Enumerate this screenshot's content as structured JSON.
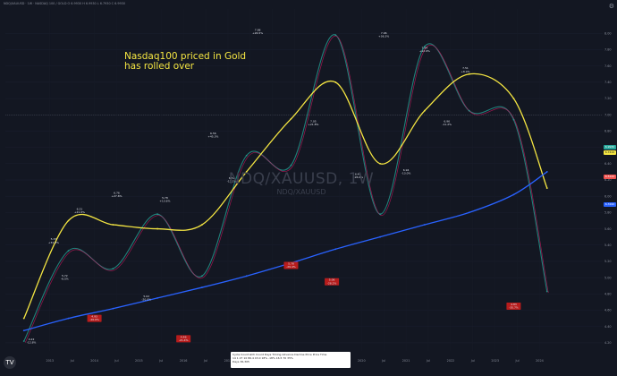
{
  "header": "NDQ/XAUUSD · 1W · NASDAQ 100 / GOLD  O 6.9930  H 6.9930  L 6.7930  C 6.9930",
  "chart_title": "NDQ/XAUUSD, 1W",
  "chart_subtitle": "NDQ/XAUUSD",
  "note": "Nasdaq100 priced in Gold\nhas rolled over",
  "colors": {
    "background": "#131722",
    "price_up": "#26a69a",
    "price_down": "#ef5350",
    "fast_ma": "#c2185b",
    "slow_wave": "#f5e642",
    "long_ma": "#2962ff",
    "label_box": "#b71c1c"
  },
  "chart_data": {
    "type": "line",
    "x": [
      "2012-06",
      "2013-06",
      "2014-06",
      "2015-06",
      "2016-06",
      "2017-06",
      "2018-06",
      "2019-06",
      "2020-06",
      "2021-06",
      "2022-06",
      "2023-06",
      "2024-03"
    ],
    "xlim": [
      "2012-01",
      "2025-06"
    ],
    "ylim": [
      4.1,
      8.3
    ],
    "x_ticks": [
      "2013",
      "Jul",
      "2014",
      "Jul",
      "2015",
      "Jul",
      "2016",
      "Jul",
      "2017",
      "Jul",
      "2018",
      "Jul",
      "2019",
      "Jul",
      "2020",
      "Jul",
      "2021",
      "Jul",
      "2022",
      "Jul",
      "2023",
      "Jul",
      "2024"
    ],
    "y_ticks": [
      "8.00",
      "7.80",
      "7.60",
      "7.40",
      "7.20",
      "7.00",
      "6.80",
      "6.60",
      "6.40",
      "6.20",
      "6.00",
      "5.80",
      "5.60",
      "5.40",
      "5.20",
      "5.00",
      "4.80",
      "4.60",
      "4.40",
      "4.20"
    ],
    "price_badges": [
      {
        "value": "6.9930",
        "color": "#26a69a"
      },
      {
        "value": "6.7410",
        "color": "#f5e642"
      },
      {
        "value": "6.5120",
        "color": "#ef5350"
      },
      {
        "value": "6.3190",
        "color": "#2962ff"
      }
    ],
    "series": [
      {
        "values": [
          4.22,
          5.33,
          5.11,
          5.78,
          5.02,
          6.5,
          6.38,
          7.98,
          5.78,
          7.84,
          7.05,
          6.94,
          4.83
        ]
      },
      {
        "values": [
          4.5,
          5.7,
          5.65,
          5.6,
          5.65,
          6.3,
          6.95,
          7.4,
          6.4,
          7.05,
          7.5,
          7.2,
          6.1
        ]
      },
      {
        "values": [
          4.35,
          4.5,
          4.62,
          4.75,
          4.88,
          5.02,
          5.18,
          5.35,
          5.5,
          5.65,
          5.8,
          6.02,
          6.3
        ]
      }
    ],
    "annotations": [
      {
        "text": "4.22\n-12.8%",
        "x": "2012-08",
        "y": 4.22,
        "box": false
      },
      {
        "text": "5.33\n+32.0%",
        "x": "2013-02",
        "y": 5.45,
        "box": false
      },
      {
        "text": "6.21\n+21.6%",
        "x": "2013-09",
        "y": 5.82,
        "box": false
      },
      {
        "text": "5.72\n-6.5%",
        "x": "2013-05",
        "y": 5.0,
        "box": false
      },
      {
        "text": "4.93\n-26.6%",
        "x": "2014-01",
        "y": 4.5,
        "box": true
      },
      {
        "text": "6.76\n+27.6%",
        "x": "2014-07",
        "y": 6.02,
        "box": false
      },
      {
        "text": "5.02\n-20.0%",
        "x": "2015-03",
        "y": 4.75,
        "box": false
      },
      {
        "text": "5.78\n+13.6%",
        "x": "2015-08",
        "y": 5.96,
        "box": false
      },
      {
        "text": "4.46\n-21.4%",
        "x": "2016-01",
        "y": 4.25,
        "box": true
      },
      {
        "text": "6.56\n+45.3%",
        "x": "2016-09",
        "y": 6.75,
        "box": false
      },
      {
        "text": "6.31\n-13.1%",
        "x": "2017-02",
        "y": 6.2,
        "box": false
      },
      {
        "text": "7.98\n+26.5%",
        "x": "2017-09",
        "y": 8.02,
        "box": false
      },
      {
        "text": "5.78\n-29.4%",
        "x": "2018-06",
        "y": 5.15,
        "box": true
      },
      {
        "text": "7.05\n+21.8%",
        "x": "2018-12",
        "y": 6.9,
        "box": false
      },
      {
        "text": "5.06\n-28.2%",
        "x": "2019-05",
        "y": 4.95,
        "box": true
      },
      {
        "text": "6.40\n+26.6%",
        "x": "2019-12",
        "y": 6.25,
        "box": false
      },
      {
        "text": "7.96\n+36.3%",
        "x": "2020-07",
        "y": 7.98,
        "box": false
      },
      {
        "text": "6.94\n-13.0%",
        "x": "2021-01",
        "y": 6.3,
        "box": false
      },
      {
        "text": "7.84\n+12.9%",
        "x": "2021-06",
        "y": 7.8,
        "box": false
      },
      {
        "text": "6.96\n-11.2%",
        "x": "2021-12",
        "y": 6.9,
        "box": false
      },
      {
        "text": "7.51\n+8.0%",
        "x": "2022-05",
        "y": 7.55,
        "box": false
      },
      {
        "text": "4.83\n-35.7%",
        "x": "2023-06",
        "y": 4.65,
        "box": true
      }
    ],
    "legend_box": [
      "Cycle Count   ΔCh Count   Days   Timing   Advance   Decline   Price   Price   Time",
      "14   1   27   10   86.4   43.0   18%   -18%   16.5   70   35%",
      "Days   36,305"
    ],
    "grid": true,
    "legend": "bottom-center"
  }
}
